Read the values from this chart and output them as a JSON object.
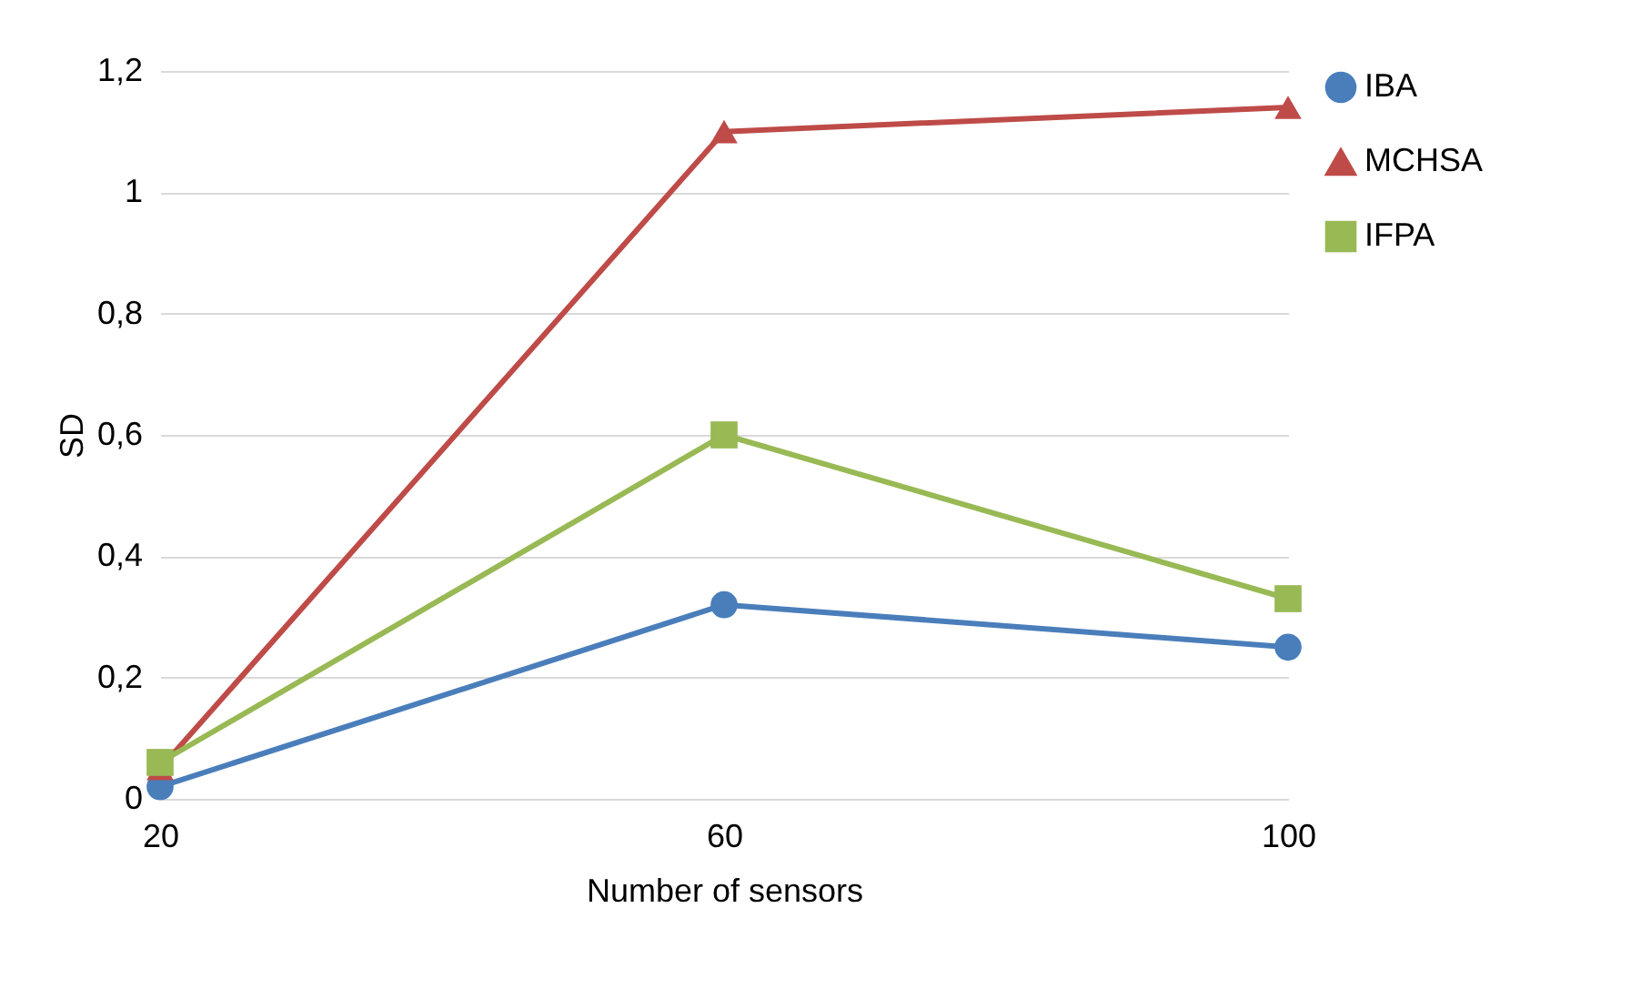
{
  "chart_data": {
    "type": "line",
    "xlabel": "Number of sensors",
    "ylabel": "SD",
    "categories": [
      "20",
      "60",
      "100"
    ],
    "series": [
      {
        "name": "IBA",
        "color": "#4a7ebb",
        "marker": "circle",
        "values": [
          0.02,
          0.32,
          0.25
        ]
      },
      {
        "name": "MCHSA",
        "color": "#be4b48",
        "marker": "triangle",
        "values": [
          0.05,
          1.1,
          1.14
        ]
      },
      {
        "name": "IFPA",
        "color": "#98b954",
        "marker": "square",
        "values": [
          0.06,
          0.6,
          0.33
        ]
      }
    ],
    "ylim": [
      0,
      1.2
    ],
    "yticks": [
      0,
      {
        "value": 0.2,
        "label": "0,2"
      },
      {
        "value": 0.4,
        "label": "0,4"
      },
      {
        "value": 0.6,
        "label": "0,6"
      },
      {
        "value": 0.8,
        "label": "0,8"
      },
      1,
      {
        "value": 1.2,
        "label": "1,2"
      }
    ],
    "grid": "y",
    "legend": "right",
    "line_style": "solid"
  }
}
